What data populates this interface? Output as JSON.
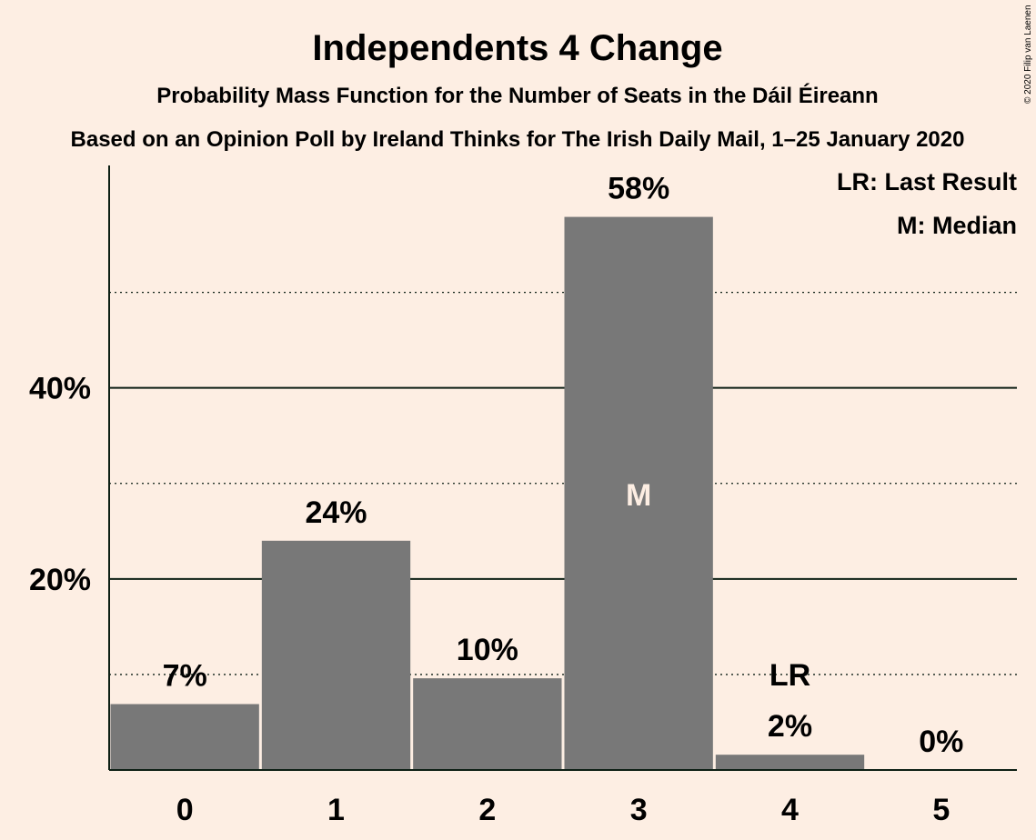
{
  "chart_data": {
    "type": "bar",
    "title": "Independents 4 Change",
    "subtitle": "Probability Mass Function for the Number of Seats in the Dáil Éireann",
    "subtitle2": "Based on an Opinion Poll by Ireland Thinks for The Irish Daily Mail, 1–25 January 2020",
    "copyright": "© 2020 Filip van Laenen",
    "categories": [
      "0",
      "1",
      "2",
      "3",
      "4",
      "5"
    ],
    "values": [
      6.9,
      24.0,
      9.6,
      57.9,
      1.6,
      0.0
    ],
    "data_labels": [
      "7%",
      "24%",
      "10%",
      "58%",
      "2%",
      "0%"
    ],
    "ylim": [
      0,
      63
    ],
    "yticks": [
      {
        "value": 20,
        "label": "20%"
      },
      {
        "value": 40,
        "label": "40%"
      }
    ],
    "minor_gridlines": [
      10,
      30,
      50
    ],
    "bar_color": "#787878",
    "median_index": 3,
    "median_marker": "M",
    "last_result_index": 4,
    "last_result_marker": "LR",
    "legend": [
      "LR: Last Result",
      "M: Median"
    ],
    "legend_position": "top-right"
  }
}
